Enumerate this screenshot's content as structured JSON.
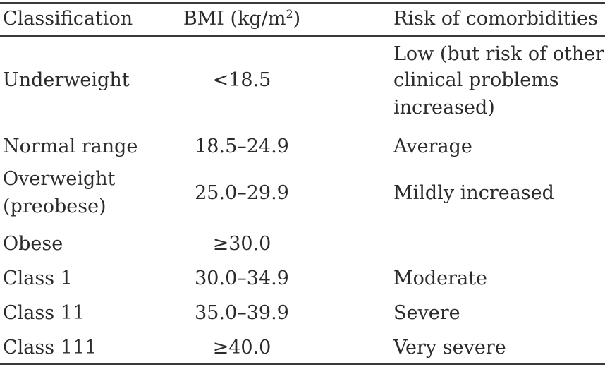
{
  "table": {
    "headers": {
      "classification": "Classification",
      "bmi_prefix": "BMI (kg/m",
      "bmi_sup": "2",
      "bmi_suffix": ")",
      "risk": "Risk of comorbidities"
    },
    "rows": [
      {
        "classification": [
          "Underweight"
        ],
        "bmi": "<18.5",
        "risk": [
          "Low (but risk of other",
          "clinical problems",
          "increased)"
        ]
      },
      {
        "classification": [
          "Normal range"
        ],
        "bmi": "18.5–24.9",
        "risk": [
          "Average"
        ]
      },
      {
        "classification": [
          "Overweight",
          "(preobese)"
        ],
        "bmi": "25.0–29.9",
        "risk": [
          "Mildly increased"
        ]
      },
      {
        "classification": [
          "Obese"
        ],
        "bmi": "≥30.0",
        "risk": [
          ""
        ]
      },
      {
        "classification": [
          "Class 1"
        ],
        "bmi": "30.0–34.9",
        "risk": [
          "Moderate"
        ]
      },
      {
        "classification": [
          "Class 11"
        ],
        "bmi": "35.0–39.9",
        "risk": [
          "Severe"
        ]
      },
      {
        "classification": [
          "Class 111"
        ],
        "bmi": "≥40.0",
        "risk": [
          "Very severe"
        ]
      }
    ]
  }
}
